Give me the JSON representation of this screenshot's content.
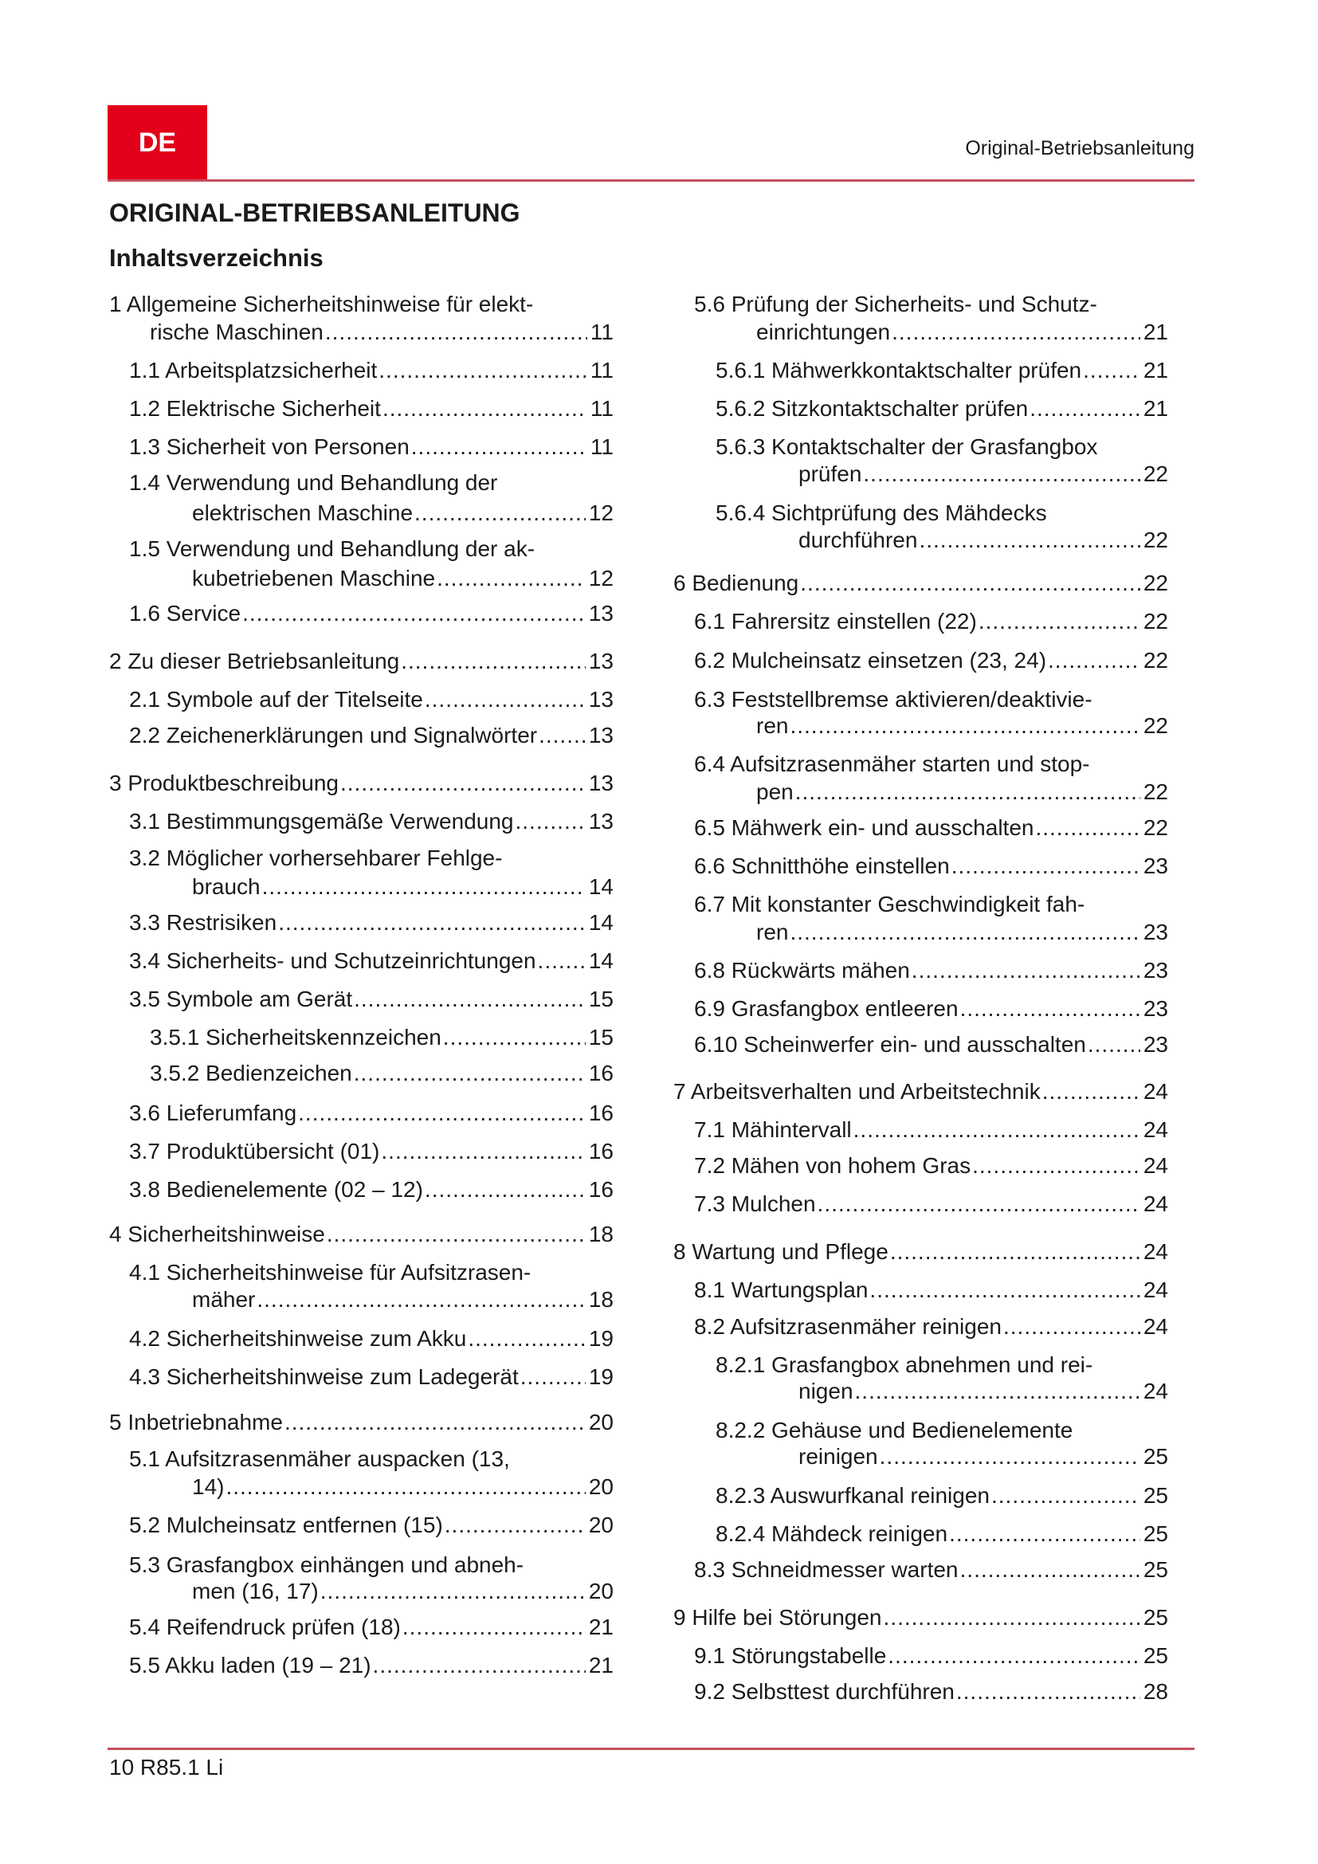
{
  "header": {
    "lang_badge": "DE",
    "running_title": "Original-Betriebsanleitung",
    "accent_color": "#e2001a",
    "rule_color": "#c4505e"
  },
  "document": {
    "title": "ORIGINAL-BETRIEBSANLEITUNG",
    "toc_heading": "Inhaltsverzeichnis"
  },
  "toc": {
    "left": [
      {
        "level": 0,
        "text": "1 Allgemeine Sicherheitshinweise für elekt-",
        "cont": "rische Maschinen",
        "page": "11"
      },
      {
        "level": 1,
        "text": "1.1 Arbeitsplatzsicherheit",
        "page": "11"
      },
      {
        "level": 1,
        "text": "1.2 Elektrische Sicherheit",
        "page": "11"
      },
      {
        "level": 1,
        "text": "1.3 Sicherheit von Personen",
        "page": "11"
      },
      {
        "level": 1,
        "text": "1.4 Verwendung und Behandlung der",
        "cont": "elektrischen Maschine",
        "page": "12"
      },
      {
        "level": 1,
        "text": "1.5 Verwendung und Behandlung der ak-",
        "cont": "kubetriebenen Maschine",
        "page": "12"
      },
      {
        "level": 1,
        "text": "1.6 Service",
        "page": "13"
      },
      {
        "level": 0,
        "text": "2 Zu dieser Betriebsanleitung",
        "page": "13"
      },
      {
        "level": 1,
        "text": "2.1 Symbole auf der Titelseite",
        "page": "13"
      },
      {
        "level": 1,
        "text": "2.2 Zeichenerklärungen und Signalwörter",
        "page": "13"
      },
      {
        "level": 0,
        "text": "3 Produktbeschreibung",
        "page": "13"
      },
      {
        "level": 1,
        "text": "3.1 Bestimmungsgemäße Verwendung",
        "page": "13"
      },
      {
        "level": 1,
        "text": "3.2 Möglicher vorhersehbarer Fehlge-",
        "cont": "brauch",
        "page": "14"
      },
      {
        "level": 1,
        "text": "3.3 Restrisiken",
        "page": "14"
      },
      {
        "level": 1,
        "text": "3.4 Sicherheits- und Schutzeinrichtungen",
        "page": "14"
      },
      {
        "level": 1,
        "text": "3.5 Symbole am Gerät",
        "page": "15"
      },
      {
        "level": 2,
        "text": "3.5.1 Sicherheitskennzeichen",
        "page": "15"
      },
      {
        "level": 2,
        "text": "3.5.2 Bedienzeichen",
        "page": "16"
      },
      {
        "level": 1,
        "text": "3.6 Lieferumfang",
        "page": "16"
      },
      {
        "level": 1,
        "text": "3.7 Produktübersicht (01)",
        "page": "16"
      },
      {
        "level": 1,
        "text": "3.8 Bedienelemente (02 – 12)",
        "page": "16"
      },
      {
        "level": 0,
        "text": "4 Sicherheitshinweise",
        "page": "18"
      },
      {
        "level": 1,
        "text": "4.1 Sicherheitshinweise für Aufsitzrasen-",
        "cont": "mäher",
        "page": "18"
      },
      {
        "level": 1,
        "text": "4.2 Sicherheitshinweise zum Akku",
        "page": "19"
      },
      {
        "level": 1,
        "text": "4.3 Sicherheitshinweise zum Ladegerät",
        "page": "19"
      },
      {
        "level": 0,
        "text": "5 Inbetriebnahme",
        "page": "20"
      },
      {
        "level": 1,
        "text": "5.1 Aufsitzrasenmäher auspacken (13,",
        "cont": "14)",
        "page": "20"
      },
      {
        "level": 1,
        "text": "5.2 Mulcheinsatz entfernen (15)",
        "page": "20"
      },
      {
        "level": 1,
        "text": "5.3 Grasfangbox einhängen und abneh-",
        "cont": "men (16, 17)",
        "page": "20"
      },
      {
        "level": 1,
        "text": "5.4 Reifendruck prüfen (18)",
        "page": "21"
      },
      {
        "level": 1,
        "text": "5.5 Akku laden (19 – 21)",
        "page": "21"
      }
    ],
    "right": [
      {
        "level": 1,
        "text": "5.6 Prüfung der Sicherheits- und Schutz-",
        "cont": "einrichtungen",
        "page": "21"
      },
      {
        "level": 2,
        "text": "5.6.1 Mähwerkkontaktschalter prüfen",
        "page": "21"
      },
      {
        "level": 2,
        "text": "5.6.2 Sitzkontaktschalter prüfen",
        "page": "21"
      },
      {
        "level": 2,
        "text": "5.6.3 Kontaktschalter der Grasfangbox",
        "cont": "prüfen",
        "page": "22"
      },
      {
        "level": 2,
        "text": "5.6.4 Sichtprüfung des Mähdecks",
        "cont": "durchführen",
        "page": "22"
      },
      {
        "level": 0,
        "text": "6 Bedienung",
        "page": "22"
      },
      {
        "level": 1,
        "text": "6.1 Fahrersitz einstellen (22)",
        "page": "22"
      },
      {
        "level": 1,
        "text": "6.2 Mulcheinsatz einsetzen (23, 24)",
        "page": "22"
      },
      {
        "level": 1,
        "text": "6.3 Feststellbremse aktivieren/deaktivie-",
        "cont": "ren",
        "page": "22"
      },
      {
        "level": 1,
        "text": "6.4 Aufsitzrasenmäher starten und stop-",
        "cont": "pen",
        "page": "22"
      },
      {
        "level": 1,
        "text": "6.5 Mähwerk ein- und ausschalten",
        "page": "22"
      },
      {
        "level": 1,
        "text": "6.6 Schnitthöhe einstellen",
        "page": "23"
      },
      {
        "level": 1,
        "text": "6.7 Mit konstanter Geschwindigkeit fah-",
        "cont": "ren",
        "page": "23"
      },
      {
        "level": 1,
        "text": "6.8 Rückwärts mähen",
        "page": "23"
      },
      {
        "level": 1,
        "text": "6.9 Grasfangbox entleeren",
        "page": "23"
      },
      {
        "level": 1,
        "text": "6.10 Scheinwerfer ein- und ausschalten",
        "page": "23"
      },
      {
        "level": 0,
        "text": "7 Arbeitsverhalten und Arbeitstechnik",
        "page": "24"
      },
      {
        "level": 1,
        "text": "7.1 Mähintervall",
        "page": "24"
      },
      {
        "level": 1,
        "text": "7.2 Mähen von hohem Gras",
        "page": "24"
      },
      {
        "level": 1,
        "text": "7.3 Mulchen",
        "page": "24"
      },
      {
        "level": 0,
        "text": "8 Wartung und Pflege",
        "page": "24"
      },
      {
        "level": 1,
        "text": "8.1 Wartungsplan",
        "page": "24"
      },
      {
        "level": 1,
        "text": "8.2 Aufsitzrasenmäher reinigen",
        "page": "24"
      },
      {
        "level": 2,
        "text": "8.2.1 Grasfangbox abnehmen und rei-",
        "cont": "nigen",
        "page": "24"
      },
      {
        "level": 2,
        "text": "8.2.2 Gehäuse und Bedienelemente",
        "cont": "reinigen",
        "page": "25"
      },
      {
        "level": 2,
        "text": "8.2.3 Auswurfkanal reinigen",
        "page": "25"
      },
      {
        "level": 2,
        "text": "8.2.4 Mähdeck reinigen",
        "page": "25"
      },
      {
        "level": 1,
        "text": "8.3 Schneidmesser warten",
        "page": "25"
      },
      {
        "level": 0,
        "text": "9 Hilfe bei Störungen",
        "page": "25"
      },
      {
        "level": 1,
        "text": "9.1 Störungstabelle",
        "page": "25"
      },
      {
        "level": 1,
        "text": "9.2 Selbsttest durchführen",
        "page": "28"
      }
    ]
  },
  "footer": {
    "page_label": "10 R85.1 Li"
  }
}
